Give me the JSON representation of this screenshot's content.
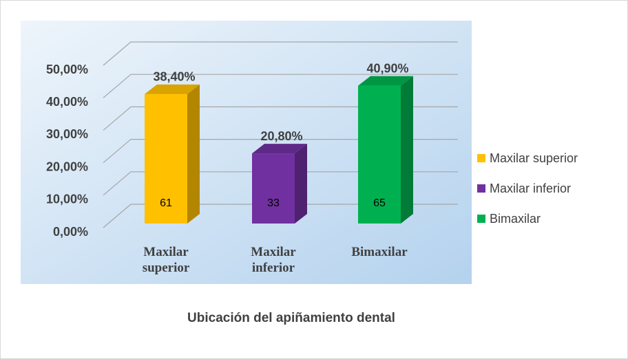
{
  "chart_data": {
    "type": "bar3d",
    "title": "Ubicación del apiñamiento dental",
    "categories": [
      "Maxilar superior",
      "Maxilar inferior",
      "Bimaxilar"
    ],
    "values": [
      38.4,
      20.8,
      40.9
    ],
    "value_labels": [
      "38,40%",
      "20,80%",
      "40,90%"
    ],
    "counts": [
      61,
      33,
      65
    ],
    "colors": [
      "#ffc000",
      "#7030a0",
      "#00b050"
    ],
    "ylim": [
      0,
      50
    ],
    "yticks": [
      {
        "value": 0,
        "label": "0,00%"
      },
      {
        "value": 10,
        "label": "10,00%"
      },
      {
        "value": 20,
        "label": "20,00%"
      },
      {
        "value": 30,
        "label": "30,00%"
      },
      {
        "value": 40,
        "label": "40,00%"
      },
      {
        "value": 50,
        "label": "50,00%"
      }
    ],
    "grid": true,
    "legend": "right"
  }
}
